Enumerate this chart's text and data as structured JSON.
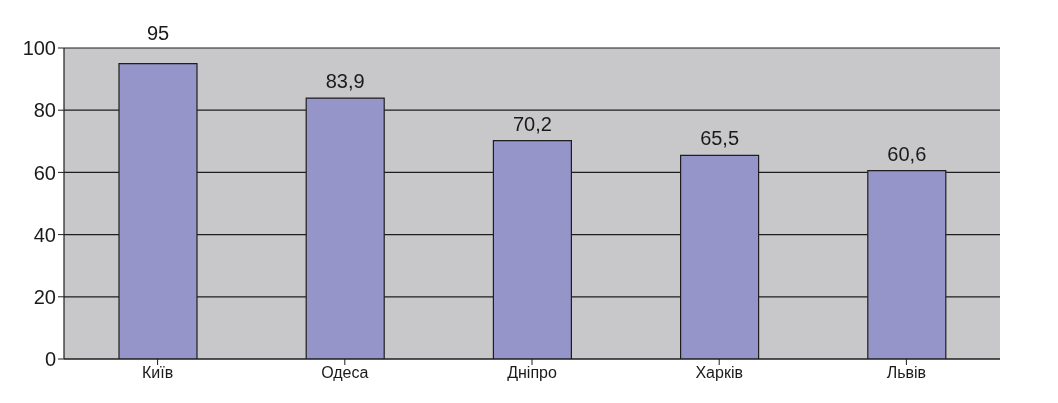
{
  "chart_data": {
    "type": "bar",
    "categories": [
      "Київ",
      "Одеса",
      "Дніпро",
      "Харків",
      "Львів"
    ],
    "values": [
      95,
      83.9,
      70.2,
      65.5,
      60.6
    ],
    "value_labels": [
      "95",
      "83,9",
      "70,2",
      "65,5",
      "60,6"
    ],
    "color": "#9595c9",
    "ylim": [
      0,
      100
    ],
    "yticks": [
      0,
      20,
      40,
      60,
      80,
      100
    ],
    "grid": "y"
  }
}
